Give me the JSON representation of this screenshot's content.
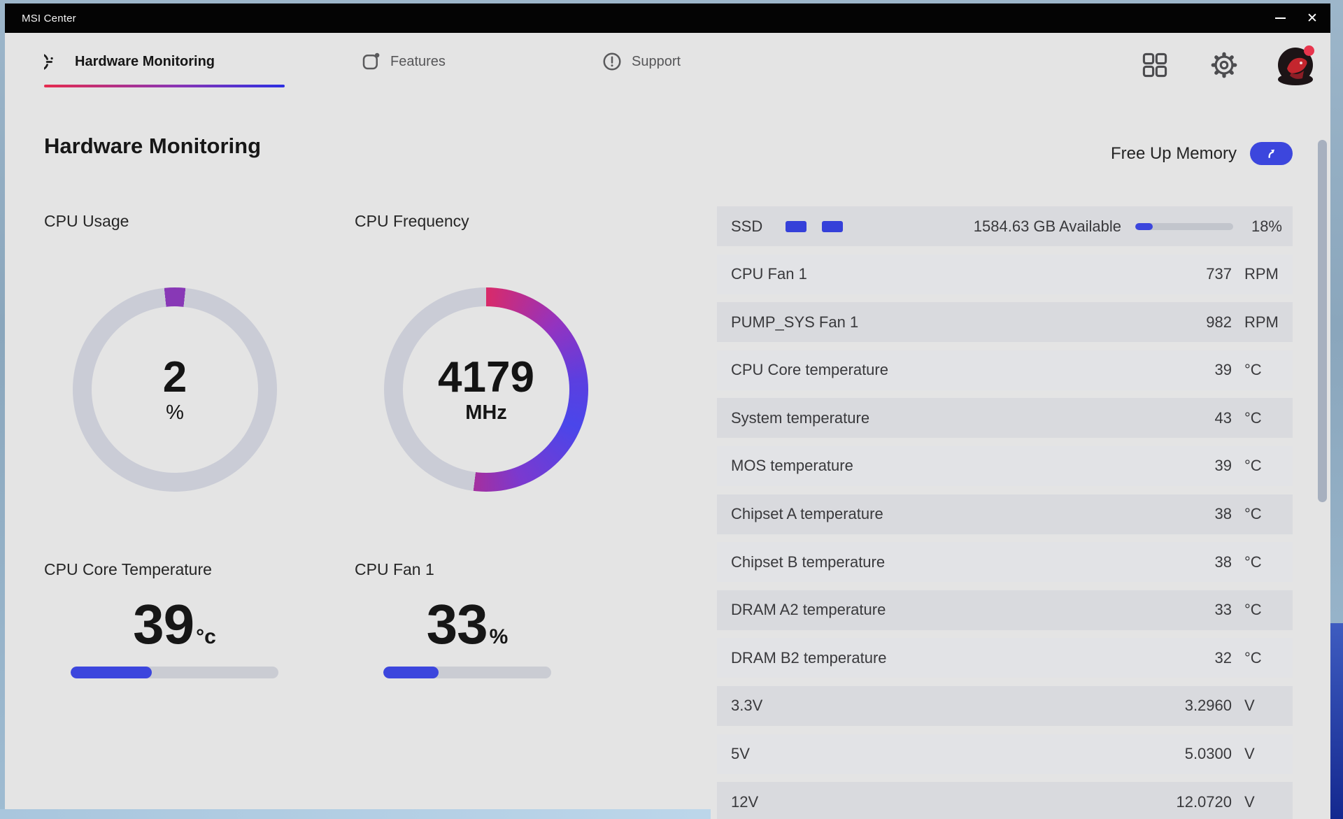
{
  "window": {
    "title": "MSI Center"
  },
  "titlebar": {
    "minimize": "minimize",
    "close": "✕"
  },
  "nav": {
    "tabs": [
      {
        "label": "Hardware Monitoring",
        "active": true
      },
      {
        "label": "Features",
        "active": false
      },
      {
        "label": "Support",
        "active": false
      }
    ]
  },
  "header": {
    "title": "Hardware Monitoring",
    "free_up_memory": "Free Up Memory"
  },
  "gauges": {
    "cpu_usage": {
      "title": "CPU Usage",
      "value": "2",
      "unit": "%",
      "percent": 2
    },
    "cpu_frequency": {
      "title": "CPU Frequency",
      "value": "4179",
      "unit": "MHz",
      "arc_percent": 52
    }
  },
  "meters": {
    "cpu_core_temp": {
      "title": "CPU Core Temperature",
      "value": "39",
      "unit": "°c",
      "percent": 39
    },
    "cpu_fan": {
      "title": "CPU Fan 1",
      "value": "33",
      "unit": "%",
      "percent": 33
    }
  },
  "ssd": {
    "label": "SSD",
    "available": "1584.63 GB Available",
    "percent_label": "18%",
    "percent": 18
  },
  "sensors": [
    {
      "name": "CPU Fan 1",
      "value": "737",
      "unit": "RPM"
    },
    {
      "name": "PUMP_SYS Fan 1",
      "value": "982",
      "unit": "RPM"
    },
    {
      "name": "CPU Core temperature",
      "value": "39",
      "unit": "°C"
    },
    {
      "name": "System temperature",
      "value": "43",
      "unit": "°C"
    },
    {
      "name": "MOS temperature",
      "value": "39",
      "unit": "°C"
    },
    {
      "name": "Chipset A temperature",
      "value": "38",
      "unit": "°C"
    },
    {
      "name": "Chipset B temperature",
      "value": "38",
      "unit": "°C"
    },
    {
      "name": "DRAM A2 temperature",
      "value": "33",
      "unit": "°C"
    },
    {
      "name": "DRAM B2 temperature",
      "value": "32",
      "unit": "°C"
    },
    {
      "name": "3.3V",
      "value": "3.2960",
      "unit": "V"
    },
    {
      "name": "5V",
      "value": "5.0300",
      "unit": "V"
    },
    {
      "name": "12V",
      "value": "12.0720",
      "unit": "V"
    }
  ],
  "icons": [
    "gauge-icon",
    "features-icon",
    "support-icon",
    "grid-icon",
    "gear-icon",
    "avatar",
    "minimize-icon",
    "close-icon",
    "arrow-up-icon"
  ],
  "colors": {
    "accent_blue": "#3c46dd",
    "usage_purple": "#8838b6",
    "ring_gray": "#caccd6",
    "freq_gradient": [
      "#d92a69",
      "#9333c0",
      "#5b3fe0",
      "#4a46ea",
      "#7b39cf",
      "#a42f9f"
    ],
    "underline_gradient": [
      "#e62b4e",
      "#2c2fe2"
    ],
    "row_dark": "#d9dade",
    "row_light": "#e2e3e6",
    "titlebar": "#040404"
  }
}
